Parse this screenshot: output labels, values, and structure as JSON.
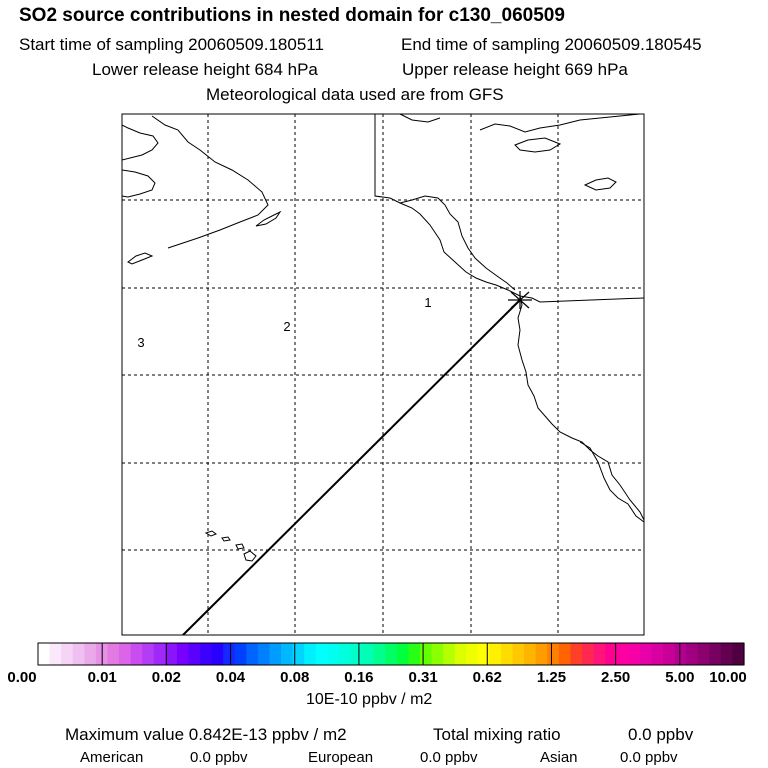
{
  "header": {
    "title": "SO2 source contributions in nested domain for c130_060509",
    "start_sampling": "Start time of sampling 20060509.180511",
    "end_sampling": "End time of sampling 20060509.180545",
    "lower_release": "Lower release height  684 hPa",
    "upper_release": "Upper release height  669 hPa",
    "met_data": "Meteorological data used are from GFS"
  },
  "map": {
    "source_markers": [
      "1",
      "2",
      "3"
    ]
  },
  "colorbar": {
    "ticks": [
      "0.00",
      "0.01",
      "0.02",
      "0.04",
      "0.08",
      "0.16",
      "0.31",
      "0.62",
      "1.25",
      "2.50",
      "5.00",
      "10.00"
    ],
    "unit": "10E-10 ppbv / m2",
    "colors": [
      "#ffffff",
      "#fbe8fb",
      "#f6d4f6",
      "#f0c0f0",
      "#eaaaea",
      "#e591e6",
      "#e27ae2",
      "#dc64e8",
      "#c84cf0",
      "#b43cf5",
      "#a028f8",
      "#8c14fa",
      "#7800ff",
      "#5a00ff",
      "#3c00ff",
      "#2800ff",
      "#1428ff",
      "#0040ff",
      "#0064ff",
      "#0080ff",
      "#009cff",
      "#00b8ff",
      "#00d4ff",
      "#00f0ff",
      "#00ffff",
      "#00fff0",
      "#00ffdc",
      "#00ffc8",
      "#00ffb4",
      "#00ff8c",
      "#00ff64",
      "#00ff3c",
      "#28ff14",
      "#64ff00",
      "#8cff00",
      "#b4ff00",
      "#dcff00",
      "#f0ff00",
      "#ffff00",
      "#fff000",
      "#ffdc00",
      "#ffc800",
      "#ffb400",
      "#ff9c00",
      "#ff8000",
      "#ff6400",
      "#ff4028",
      "#ff2850",
      "#ff1478",
      "#ff0090",
      "#ff00a0",
      "#f800a8",
      "#e800a8",
      "#d800a0",
      "#c80098",
      "#b40090",
      "#a00080",
      "#8c0070",
      "#780060",
      "#640050",
      "#500040"
    ]
  },
  "summary": {
    "max_value": "Maximum value  0.842E-13 ppbv / m2",
    "total_label": "Total mixing ratio",
    "total_value": "0.0 ppbv",
    "american_label": "American",
    "american_value": "0.0 ppbv",
    "european_label": "European",
    "european_value": "0.0 ppbv",
    "asian_label": "Asian",
    "asian_value": "0.0 ppbv"
  }
}
